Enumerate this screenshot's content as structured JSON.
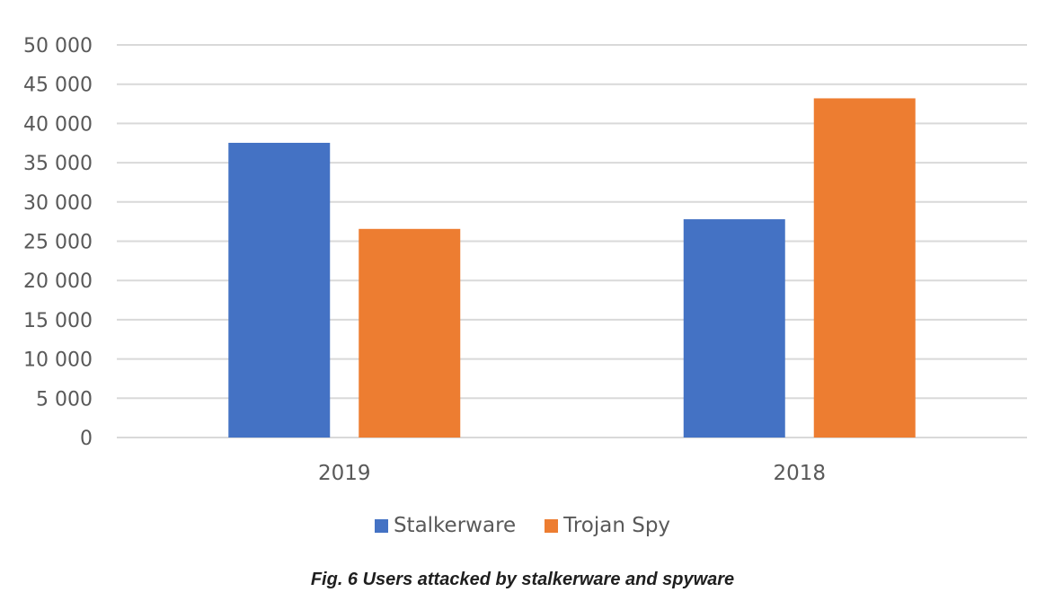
{
  "chart_data": {
    "type": "bar",
    "categories": [
      "2019",
      "2018"
    ],
    "series": [
      {
        "name": "Stalkerware",
        "color": "#4472c4",
        "values": [
          37532,
          27798
        ]
      },
      {
        "name": "Trojan Spy",
        "color": "#ed7d31",
        "values": [
          26568,
          43198
        ]
      }
    ],
    "ylim": [
      0,
      50000
    ],
    "yticks": [
      0,
      5000,
      10000,
      15000,
      20000,
      25000,
      30000,
      35000,
      40000,
      45000,
      50000
    ],
    "ytick_labels": [
      "0",
      "5 000",
      "10 000",
      "15 000",
      "20 000",
      "25 000",
      "30 000",
      "35 000",
      "40 000",
      "45 000",
      "50 000"
    ],
    "grid": true,
    "legend_position": "bottom-center",
    "title": "",
    "xlabel": "",
    "ylabel": ""
  },
  "caption": "Fig. 6 Users attacked by stalkerware and spyware"
}
